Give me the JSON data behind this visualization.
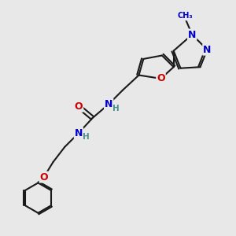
{
  "bg_color": "#e8e8e8",
  "bond_color": "#1a1a1a",
  "bond_width": 1.5,
  "atom_colors": {
    "O": "#cc0000",
    "N": "#0000cc",
    "H": "#4a9090",
    "C": "#1a1a1a"
  },
  "font_size_atom": 9,
  "font_size_small": 7.5
}
